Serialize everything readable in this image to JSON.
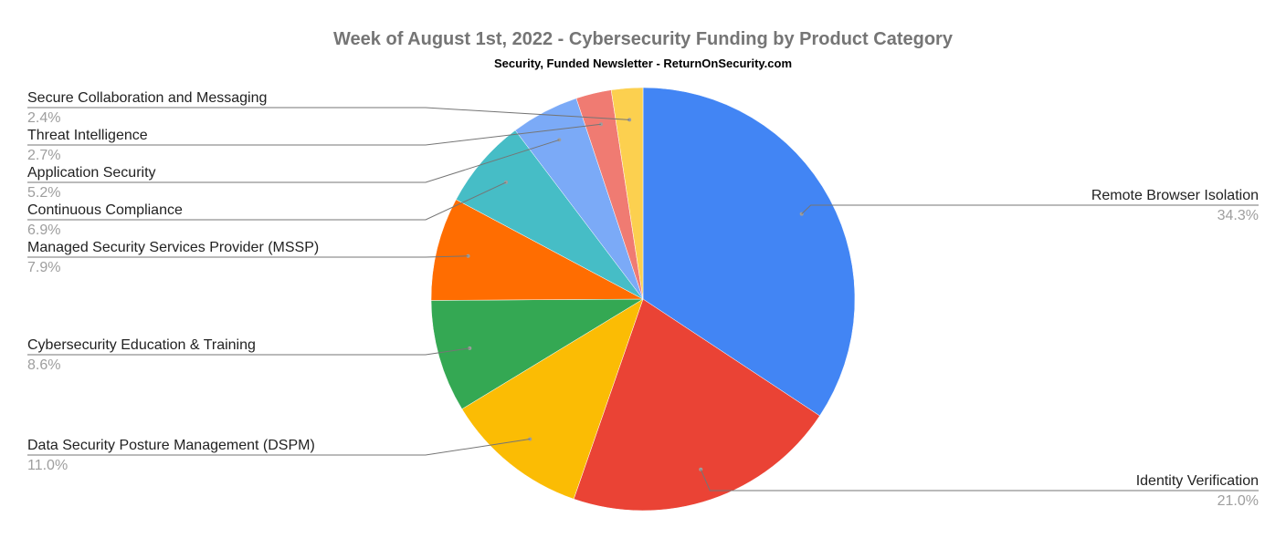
{
  "chart_data": {
    "type": "pie",
    "title": "Week of August 1st, 2022 - Cybersecurity Funding by Product Category",
    "subtitle": "Security, Funded Newsletter - ReturnOnSecurity.com",
    "slices": [
      {
        "label": "Remote Browser Isolation",
        "value": 34.3,
        "pct_label": "34.3%",
        "color": "#4285f4"
      },
      {
        "label": "Identity Verification",
        "value": 21.0,
        "pct_label": "21.0%",
        "color": "#ea4335"
      },
      {
        "label": "Data Security Posture Management (DSPM)",
        "value": 11.0,
        "pct_label": "11.0%",
        "color": "#fbbc04"
      },
      {
        "label": "Cybersecurity Education & Training",
        "value": 8.6,
        "pct_label": "8.6%",
        "color": "#34a853"
      },
      {
        "label": "Managed Security Services Provider (MSSP)",
        "value": 7.9,
        "pct_label": "7.9%",
        "color": "#ff6d01"
      },
      {
        "label": "Continuous Compliance",
        "value": 6.9,
        "pct_label": "6.9%",
        "color": "#46bdc6"
      },
      {
        "label": "Application Security",
        "value": 5.2,
        "pct_label": "5.2%",
        "color": "#7baaf7"
      },
      {
        "label": "Threat Intelligence",
        "value": 2.7,
        "pct_label": "2.7%",
        "color": "#f07b72"
      },
      {
        "label": "Secure Collaboration and Messaging",
        "value": 2.4,
        "pct_label": "2.4%",
        "color": "#fcd04f"
      }
    ],
    "start_angle": "12 o'clock",
    "direction": "clockwise",
    "legend": "labeled slices with leader lines"
  }
}
